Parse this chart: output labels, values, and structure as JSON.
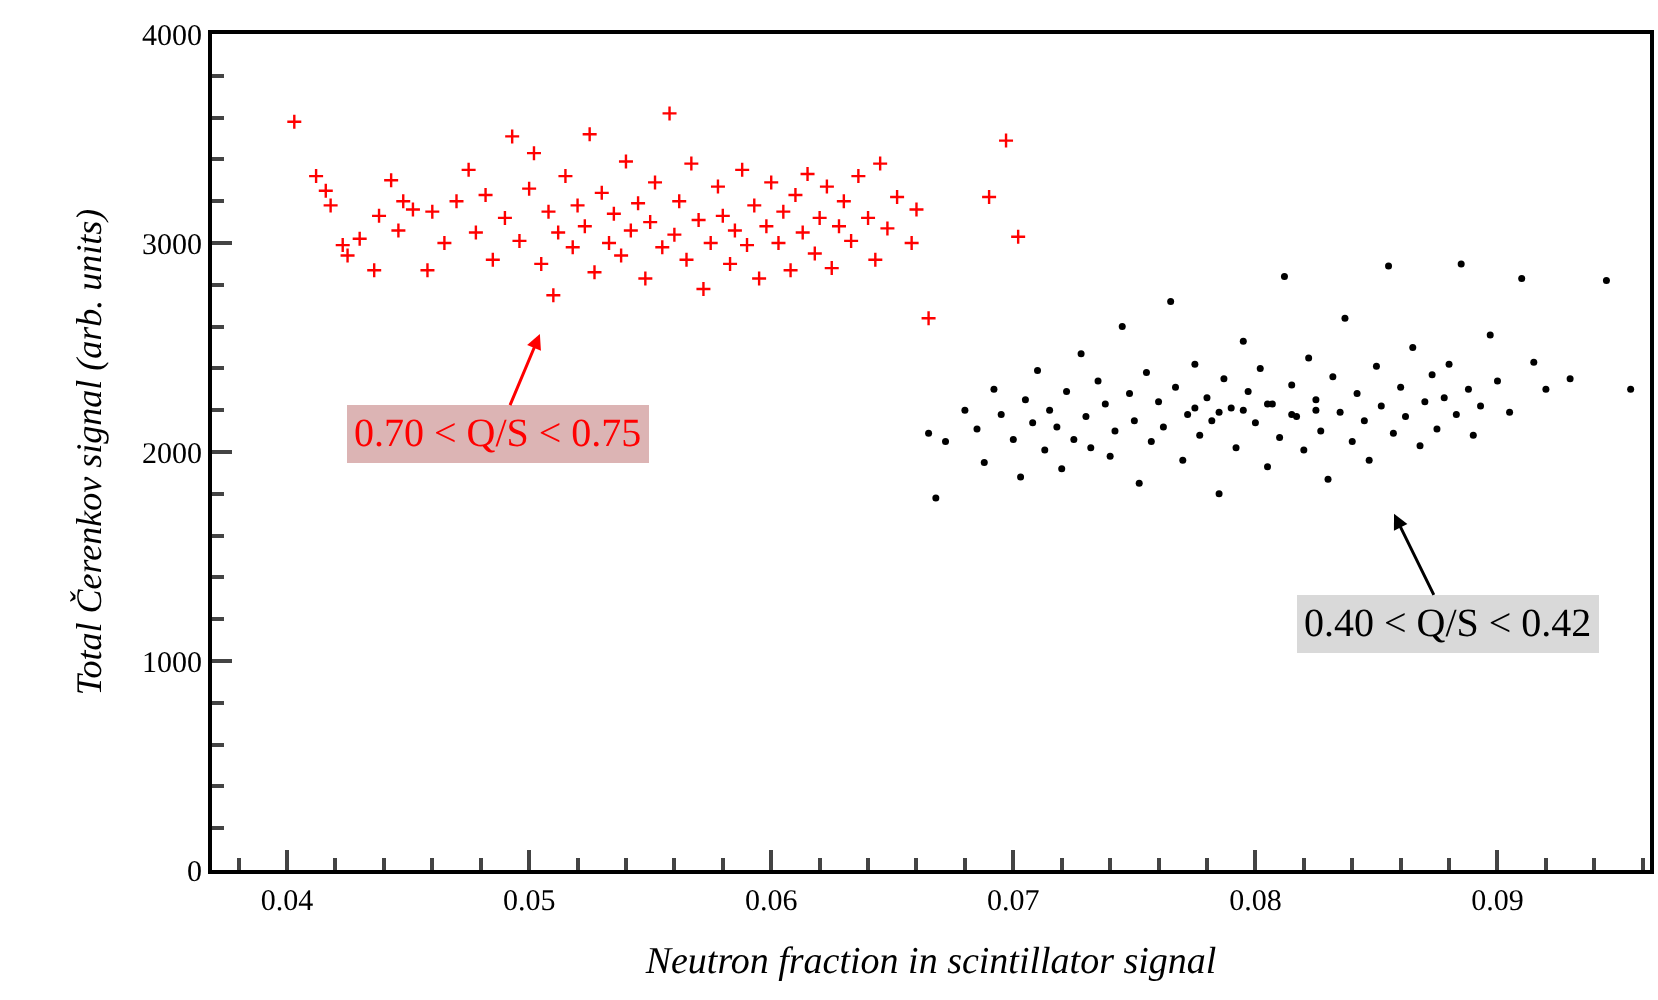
{
  "chart_data": {
    "type": "scatter",
    "xlabel": "Neutron fraction in scintillator signal",
    "ylabel": "Total Čerenkov signal (arb. units)",
    "xlim": [
      0.0369,
      0.0963
    ],
    "xticks": [
      0.04,
      0.05,
      0.06,
      0.07,
      0.08,
      0.09
    ],
    "ylim": [
      0,
      4000
    ],
    "yticks": [
      0,
      1000,
      2000,
      3000,
      4000
    ],
    "annotations": [
      "0.70 < Q/S < 0.75",
      "0.40 < Q/S < 0.42"
    ],
    "series": [
      {
        "color": "#ff0000",
        "marker": "cross",
        "x": [
          0.0403,
          0.0412,
          0.0416,
          0.0418,
          0.0423,
          0.0425,
          0.043,
          0.0436,
          0.0438,
          0.0443,
          0.0446,
          0.0448,
          0.0452,
          0.0458,
          0.046,
          0.0465,
          0.047,
          0.0475,
          0.0478,
          0.0482,
          0.0485,
          0.049,
          0.0493,
          0.0496,
          0.05,
          0.0502,
          0.0505,
          0.0508,
          0.051,
          0.0512,
          0.0515,
          0.0518,
          0.052,
          0.0523,
          0.0525,
          0.0527,
          0.053,
          0.0533,
          0.0535,
          0.0538,
          0.054,
          0.0542,
          0.0545,
          0.0548,
          0.055,
          0.0552,
          0.0555,
          0.0558,
          0.056,
          0.0562,
          0.0565,
          0.0567,
          0.057,
          0.0572,
          0.0575,
          0.0578,
          0.058,
          0.0583,
          0.0585,
          0.0588,
          0.059,
          0.0593,
          0.0595,
          0.0598,
          0.06,
          0.0603,
          0.0605,
          0.0608,
          0.061,
          0.0613,
          0.0615,
          0.0618,
          0.062,
          0.0623,
          0.0625,
          0.0628,
          0.063,
          0.0633,
          0.0636,
          0.064,
          0.0643,
          0.0645,
          0.0648,
          0.0652,
          0.0658,
          0.066,
          0.0665,
          0.069,
          0.0697,
          0.0702
        ],
        "values": [
          3580,
          3320,
          3250,
          3180,
          2990,
          2940,
          3020,
          2870,
          3130,
          3300,
          3060,
          3200,
          3160,
          2870,
          3150,
          3000,
          3200,
          3350,
          3050,
          3230,
          2920,
          3120,
          3510,
          3010,
          3260,
          3430,
          2900,
          3150,
          2750,
          3050,
          3320,
          2980,
          3180,
          3080,
          3520,
          2860,
          3240,
          3000,
          3140,
          2940,
          3390,
          3060,
          3190,
          2830,
          3100,
          3290,
          2980,
          3620,
          3040,
          3200,
          2920,
          3380,
          3110,
          2780,
          3000,
          3270,
          3130,
          2900,
          3060,
          3350,
          2990,
          3180,
          2830,
          3080,
          3290,
          3000,
          3150,
          2870,
          3230,
          3050,
          3330,
          2950,
          3120,
          3270,
          2880,
          3080,
          3200,
          3010,
          3320,
          3120,
          2920,
          3380,
          3070,
          3220,
          3000,
          3160,
          2640,
          3220,
          3490,
          3030
        ]
      },
      {
        "color": "#000000",
        "marker": "circle",
        "x": [
          0.0665,
          0.0668,
          0.0672,
          0.068,
          0.0685,
          0.0688,
          0.0692,
          0.0695,
          0.07,
          0.0703,
          0.0705,
          0.0708,
          0.071,
          0.0713,
          0.0715,
          0.0718,
          0.072,
          0.0722,
          0.0725,
          0.0728,
          0.073,
          0.0732,
          0.0735,
          0.0738,
          0.074,
          0.0742,
          0.0745,
          0.0748,
          0.075,
          0.0752,
          0.0755,
          0.0757,
          0.076,
          0.0762,
          0.0765,
          0.0767,
          0.077,
          0.0772,
          0.0775,
          0.0777,
          0.078,
          0.0782,
          0.0785,
          0.0787,
          0.079,
          0.0792,
          0.0795,
          0.0797,
          0.08,
          0.0802,
          0.0805,
          0.0807,
          0.081,
          0.0812,
          0.0815,
          0.0817,
          0.082,
          0.0822,
          0.0825,
          0.0827,
          0.083,
          0.0832,
          0.0835,
          0.0837,
          0.084,
          0.0842,
          0.0845,
          0.0847,
          0.085,
          0.0852,
          0.0855,
          0.0857,
          0.086,
          0.0862,
          0.0865,
          0.0868,
          0.087,
          0.0873,
          0.0875,
          0.0878,
          0.088,
          0.0883,
          0.0885,
          0.0888,
          0.089,
          0.0893,
          0.0897,
          0.09,
          0.0905,
          0.091,
          0.0915,
          0.092,
          0.093,
          0.0945,
          0.0955,
          0.0785,
          0.0795,
          0.0805,
          0.0815,
          0.0775,
          0.0825
        ],
        "values": [
          2090,
          1780,
          2050,
          2200,
          2110,
          1950,
          2300,
          2180,
          2060,
          1880,
          2250,
          2140,
          2390,
          2010,
          2200,
          2120,
          1920,
          2290,
          2060,
          2470,
          2170,
          2020,
          2340,
          2230,
          1980,
          2100,
          2600,
          2280,
          2150,
          1850,
          2380,
          2050,
          2240,
          2120,
          2720,
          2310,
          1960,
          2180,
          2420,
          2080,
          2260,
          2150,
          1800,
          2350,
          2210,
          2020,
          2530,
          2290,
          2140,
          2400,
          1930,
          2230,
          2070,
          2840,
          2320,
          2170,
          2010,
          2450,
          2250,
          2100,
          1870,
          2360,
          2190,
          2640,
          2050,
          2280,
          2150,
          1960,
          2410,
          2220,
          2890,
          2090,
          2310,
          2170,
          2500,
          2030,
          2240,
          2370,
          2110,
          2260,
          2420,
          2180,
          2900,
          2300,
          2080,
          2220,
          2560,
          2340,
          2190,
          2830,
          2430,
          2300,
          2350,
          2820,
          2300,
          2190,
          2200,
          2230,
          2180,
          2210,
          2200
        ]
      }
    ]
  }
}
